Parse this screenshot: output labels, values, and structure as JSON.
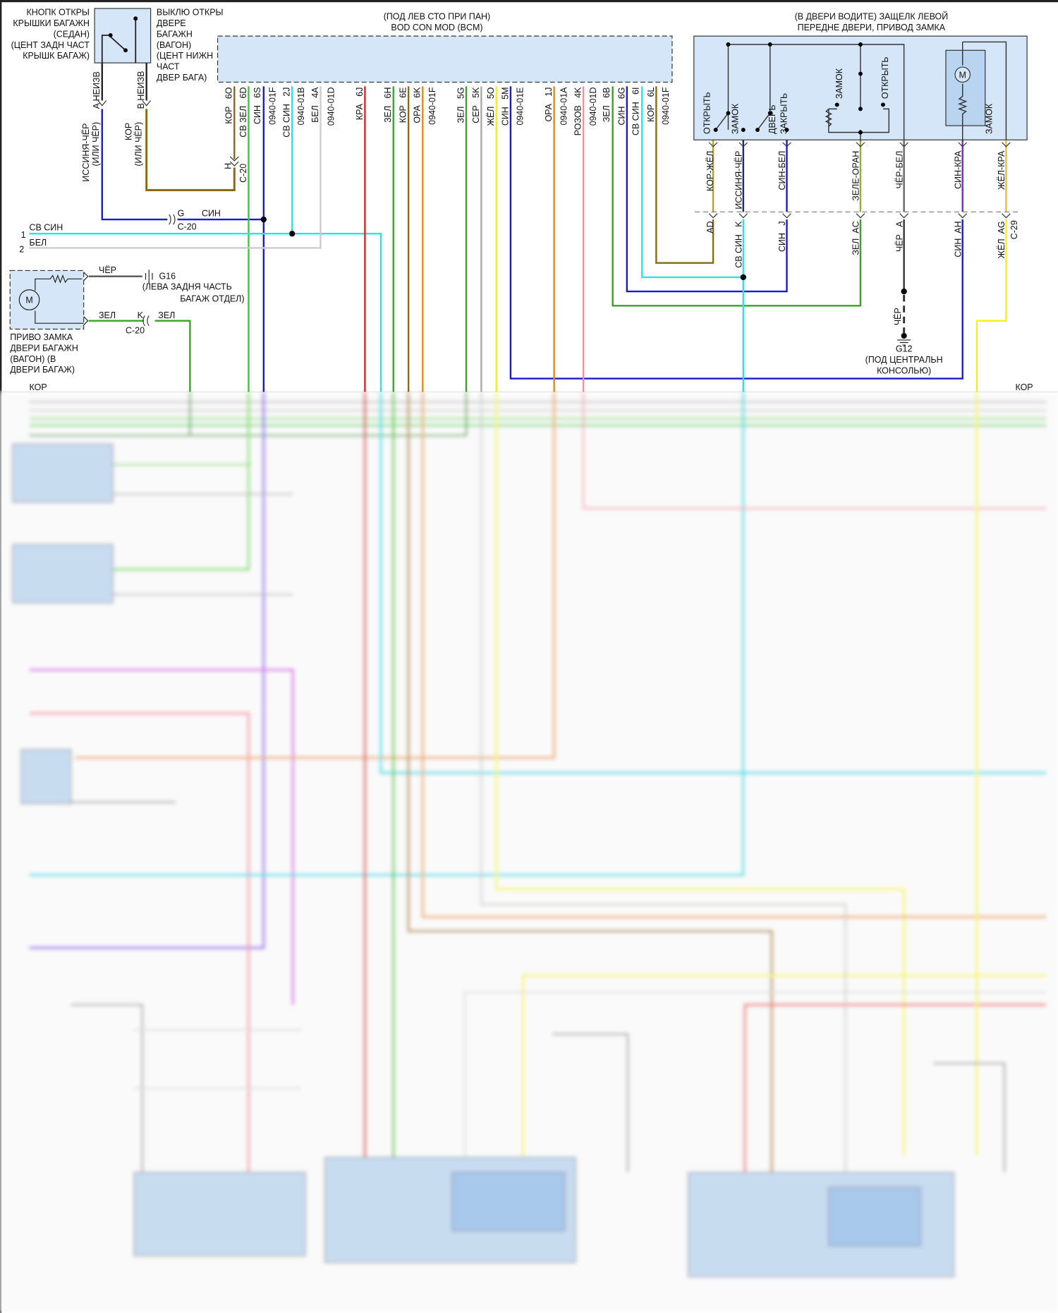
{
  "trunk_switch": {
    "left_label": [
      "КНОПК ОТКРЫ",
      "КРЫШКИ БАГАЖН",
      "(СЕДАН)",
      "(ЦЕНТ ЗАДН ЧАСТ",
      "КРЫШК БАГАЖ)"
    ],
    "right_label": [
      "ВЫКЛЮ ОТКРЫ",
      "ДВЕРЕ",
      "БАГАЖН",
      "(ВАГОН)",
      "(ЦЕНТ НИЖН",
      "ЧАСТ",
      "ДВЕР БАГА)"
    ],
    "pin_a": "A НЕИЗВ",
    "pin_b": "B НЕИЗВ",
    "wire_a": [
      "ИССИНЯ-ЧЁР",
      "(ИЛИ ЧЁР)"
    ],
    "wire_b": [
      "КОР",
      "(ИЛИ ЧЁР)"
    ]
  },
  "bcm": {
    "title": [
      "(ПОД ЛЕВ СТО ПРИ ПАН)",
      "BOD CON MOD (BCM)"
    ],
    "pins": [
      "КОР   6O",
      "СВ ЗЕЛ   6D",
      "СИН   6S",
      "0940-01F",
      "СВ СИН   2J",
      "0940-01B",
      "БЕЛ   4A",
      "0940-01D",
      "КРА   6J",
      "ЗЕЛ   6H",
      "КОР   6E",
      "ОРА   6K",
      "0940-01F",
      "ЗЕЛ   5G",
      "СЕР   5K",
      "ЖЁЛ   5O",
      "СИН   5M",
      "0940-01E",
      "ОРА   1J",
      "0940-01A",
      "РОЗОВ   4K",
      "0940-01D",
      "ЗЕЛ   6B",
      "СИН   6G",
      "СВ СИН   6I",
      "КОР   6L",
      "0940-01F"
    ]
  },
  "connector_c20": {
    "h_pin": "H",
    "name": "C-20",
    "g_pin": "G",
    "g_wire": "СИН",
    "k_pin": "K"
  },
  "left_lines": {
    "line1_num": "1",
    "line1_color": "СВ СИН",
    "line2_num": "2",
    "line2_color": "БЕЛ",
    "bottom_color": "КОР"
  },
  "liftgate_actuator": {
    "label": [
      "ПРИВО ЗАМКА",
      "ДВЕРИ БАГАЖН",
      "(ВАГОН) (В",
      "ДВЕРИ БАГАЖ)"
    ],
    "motor": "M",
    "ground_wire": "ЧЁР",
    "ground": "G16",
    "ground_location": [
      "(ЛЕВА ЗАДНЯ ЧАСТЬ",
      "БАГАЖ ОТДЕЛ)"
    ],
    "wire_out": "ЗЕЛ",
    "wire_in": "ЗЕЛ"
  },
  "door_latch": {
    "title": [
      "(В ДВЕРИ ВОДИТЕ) ЗАЩЕЛК ЛЕВОЙ",
      "ПЕРЕДНЕ ДВЕРИ, ПРИВОД ЗАМКА"
    ],
    "internal": [
      "ОТКРЫТЬ",
      "ЗАМОК",
      "ДВЕРЬ",
      "ЗАКРЫТЬ",
      "ЗАМОК",
      "ОТКРЫТЬ",
      "ЗАМОК"
    ],
    "motor": "M",
    "upper_wires": [
      "КОР-ЖЁЛ",
      "ИССИНЯ-ЧЁР",
      "СИН-БЕЛ",
      "ЗЕЛЕ-ОРАН",
      "ЧЁР-БЕЛ",
      "СИН-КРА",
      "ЖЁЛ-КРА"
    ],
    "lower_wires": [
      "AD",
      "СВ СИН   K",
      "СИН   J",
      "ЗЕЛ  AC",
      "ЧЁР   A",
      "СИН  AH",
      "ЖЁЛ  AG"
    ],
    "connector": "C-29",
    "ground_wire": "ЧЁР",
    "ground": "G12",
    "ground_location": [
      "(ПОД ЦЕНТРАЛЬН",
      "КОНСОЛЬЮ)"
    ]
  },
  "right_edge": {
    "bottom_color": "КОР"
  },
  "colors": {
    "brown": "#8a6a10",
    "green": "#33cc33",
    "dark_green": "#3aa02a",
    "blue": "#1a1acc",
    "cyan": "#33e0e8",
    "white": "#cccccc",
    "red": "#dd2222",
    "orange": "#e08a1e",
    "yellow": "#f0f020",
    "gray": "#aaaaaa",
    "pink": "#f090a0",
    "purple": "#7030a0",
    "component_fill": "#d4e6f7"
  }
}
